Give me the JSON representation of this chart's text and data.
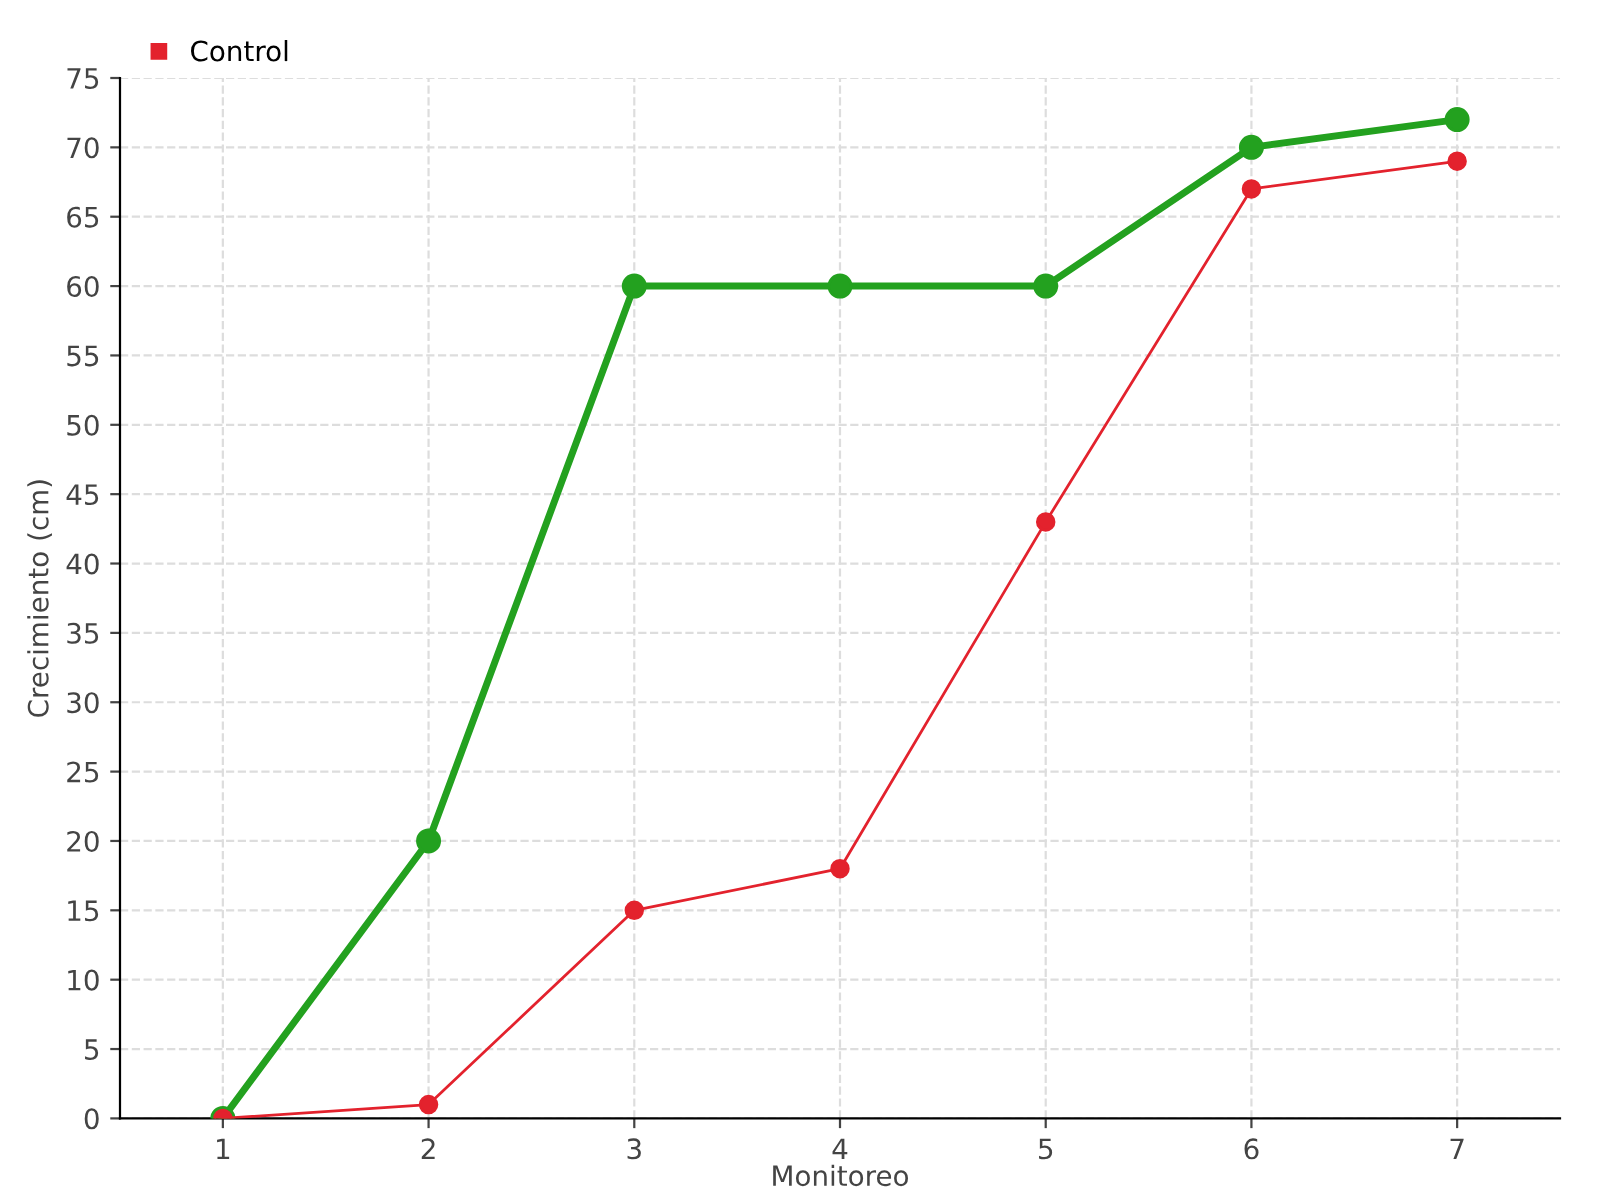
{
  "chart_data": {
    "type": "line",
    "xlabel": "Monitoreo",
    "ylabel": "Crecimiento (cm)",
    "categories": [
      "1",
      "2",
      "3",
      "4",
      "5",
      "6",
      "7"
    ],
    "series": [
      {
        "color": "#23a11f",
        "values": [
          0,
          20,
          60,
          60,
          60,
          70,
          72
        ]
      },
      {
        "name": "Control",
        "color": "#e3222d",
        "values": [
          0,
          1,
          15,
          18,
          43,
          67,
          69
        ]
      }
    ],
    "ylim": [
      0,
      75
    ],
    "yticks": [
      0,
      5,
      10,
      15,
      20,
      25,
      30,
      35,
      40,
      45,
      50,
      55,
      60,
      65,
      70,
      75
    ],
    "grid": true,
    "legend": "top left",
    "marker": "circle",
    "line_style": "solid"
  }
}
